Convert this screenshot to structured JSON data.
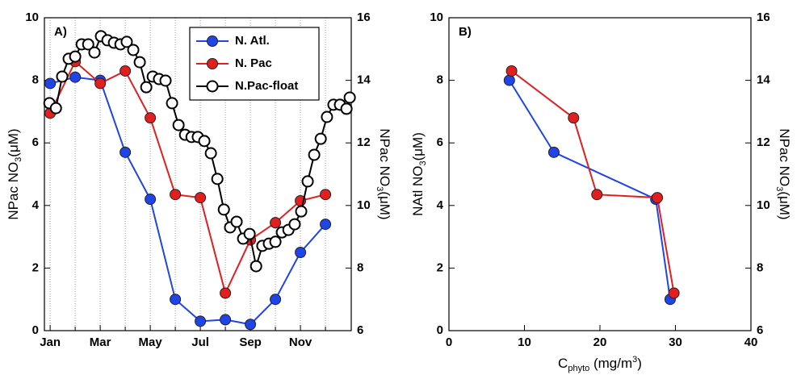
{
  "chart_data": [
    {
      "type": "line",
      "title": "A)",
      "ylabel": [
        {
          "text": "NPac NO"
        },
        {
          "text": "3",
          "script": "sub"
        },
        {
          "text": "(μM)"
        }
      ],
      "y2label": [
        {
          "text": "NPac NO"
        },
        {
          "text": "3",
          "script": "sub"
        },
        {
          "text": "(μM)"
        }
      ],
      "xlim": [
        0.77,
        13.03
      ],
      "xticks": [
        {
          "value": 1,
          "label": "Jan"
        },
        {
          "value": 3,
          "label": "Mar"
        },
        {
          "value": 5,
          "label": "May"
        },
        {
          "value": 7,
          "label": "Jul"
        },
        {
          "value": 9,
          "label": "Sep"
        },
        {
          "value": 11,
          "label": "Nov"
        }
      ],
      "xminorticks": [
        2,
        4,
        6,
        8,
        10,
        12
      ],
      "xgrid": true,
      "ylim": [
        0,
        10
      ],
      "yticks": [
        0,
        2,
        4,
        6,
        8,
        10
      ],
      "y2lim": [
        6,
        16
      ],
      "y2ticks": [
        6,
        8,
        10,
        12,
        14,
        16
      ],
      "legend": "upper right",
      "series": [
        {
          "name": "N. Atl.",
          "color": "#1f45e8",
          "marker": "filled",
          "x": [
            1,
            2,
            3,
            4,
            5,
            6,
            7,
            8,
            9,
            10,
            11,
            12
          ],
          "values": [
            7.9,
            8.1,
            8.0,
            5.7,
            4.2,
            1.0,
            0.3,
            0.35,
            0.2,
            1.0,
            2.5,
            3.4
          ]
        },
        {
          "name": "N. Pac",
          "color": "#e21f1f",
          "marker": "filled",
          "x": [
            1,
            2,
            3,
            4,
            5,
            6,
            7,
            8,
            9,
            10,
            11,
            12
          ],
          "values": [
            6.95,
            8.6,
            7.9,
            8.3,
            6.8,
            4.35,
            4.25,
            1.2,
            2.9,
            3.45,
            4.15,
            4.35
          ]
        },
        {
          "name": "N.Pac-float",
          "color": "#000000",
          "marker": "open",
          "axis": "y2",
          "x": [
            0.97,
            1.23,
            1.48,
            1.74,
            2.0,
            2.26,
            2.52,
            2.77,
            3.03,
            3.29,
            3.55,
            3.81,
            4.06,
            4.32,
            4.58,
            4.84,
            5.1,
            5.35,
            5.61,
            5.87,
            6.13,
            6.39,
            6.65,
            6.9,
            7.16,
            7.42,
            7.68,
            7.94,
            8.19,
            8.45,
            8.71,
            8.97,
            9.23,
            9.48,
            9.74,
            10.0,
            10.26,
            10.52,
            10.77,
            11.03,
            11.29,
            11.55,
            11.81,
            12.06,
            12.32,
            12.58,
            12.84,
            12.97
          ],
          "values": [
            13.27,
            13.11,
            14.12,
            14.69,
            14.76,
            15.15,
            15.15,
            14.89,
            15.41,
            15.28,
            15.2,
            15.15,
            15.23,
            14.97,
            14.58,
            13.78,
            14.12,
            14.04,
            13.99,
            13.27,
            12.57,
            12.26,
            12.19,
            12.19,
            12.06,
            11.67,
            10.85,
            9.87,
            9.3,
            9.48,
            8.94,
            9.09,
            8.06,
            8.71,
            8.78,
            8.84,
            9.14,
            9.22,
            9.4,
            9.81,
            10.77,
            11.62,
            12.13,
            12.83,
            13.22,
            13.22,
            13.09,
            13.45
          ]
        }
      ]
    },
    {
      "type": "line",
      "title": "B)",
      "xlabel": [
        {
          "text": "C"
        },
        {
          "text": "phyto",
          "script": "sub"
        },
        {
          "text": " (mg/m"
        },
        {
          "text": "3",
          "script": "sup"
        },
        {
          "text": ")"
        }
      ],
      "ylabel": [
        {
          "text": "NAtl NO"
        },
        {
          "text": "3",
          "script": "sub"
        },
        {
          "text": "(μM)"
        }
      ],
      "y2label": [
        {
          "text": "NPac NO"
        },
        {
          "text": "3",
          "script": "sub"
        },
        {
          "text": "(μM)"
        }
      ],
      "xlim": [
        0,
        40
      ],
      "xticks": [
        0,
        10,
        20,
        30,
        40
      ],
      "ylim": [
        0,
        10
      ],
      "yticks": [
        0,
        2,
        4,
        6,
        8,
        10
      ],
      "y2lim": [
        6,
        16
      ],
      "y2ticks": [
        6,
        8,
        10,
        12,
        14,
        16
      ],
      "series": [
        {
          "color": "#1f45e8",
          "marker": "filled",
          "x": [
            8.0,
            13.9,
            27.4,
            29.3
          ],
          "values": [
            8.0,
            5.7,
            4.2,
            1.0
          ]
        },
        {
          "color": "#e21f1f",
          "marker": "filled",
          "x": [
            8.3,
            16.5,
            19.6,
            27.6,
            29.8
          ],
          "values": [
            8.3,
            6.8,
            4.35,
            4.25,
            1.2
          ]
        }
      ]
    }
  ]
}
